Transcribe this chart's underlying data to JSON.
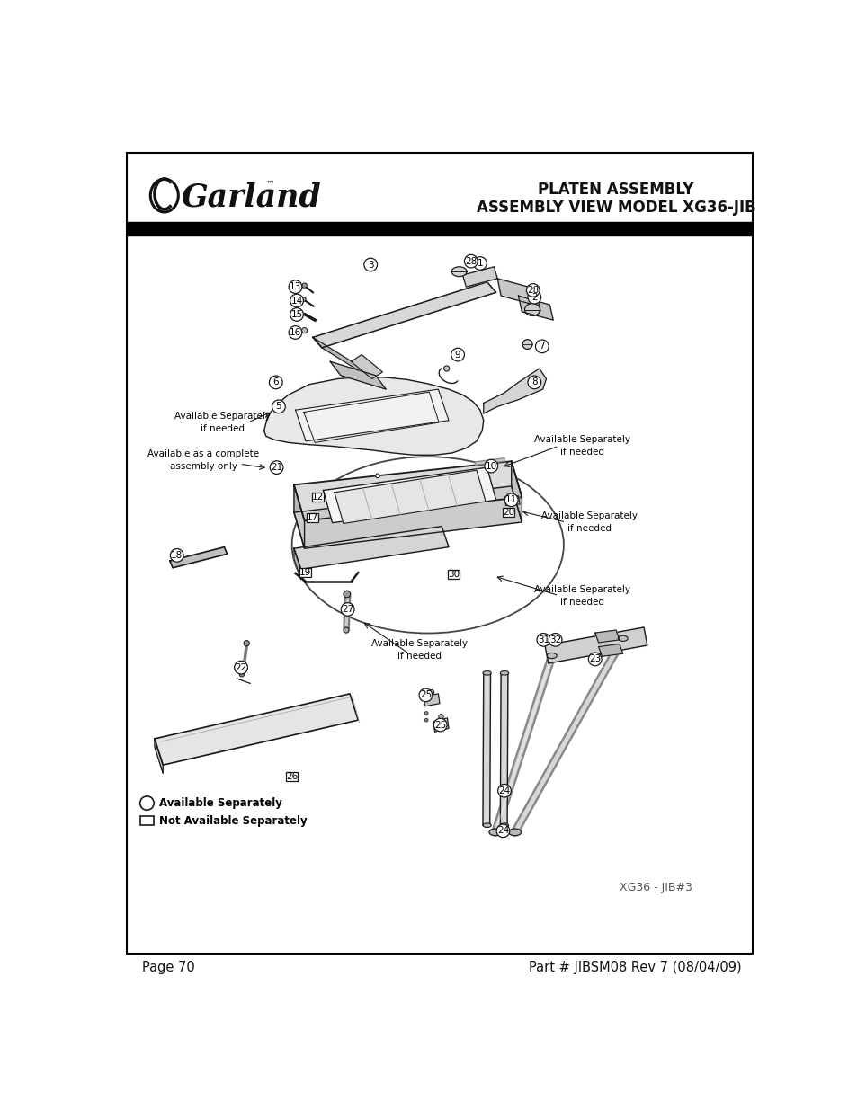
{
  "page_bg": "#ffffff",
  "border_color": "#000000",
  "title_line1": "PLATEN ASSEMBLY",
  "title_line2": "ASSEMBLY VIEW MODEL XG36-JIB",
  "footer_left": "Page 70",
  "footer_right": "Part # JIBSM08 Rev 7 (08/04/09)",
  "watermark": "XG36 - JIB#3",
  "legend_circle_label": "Available Separately",
  "legend_rect_label": "Not Available Separately",
  "lc": "#1a1a1a"
}
